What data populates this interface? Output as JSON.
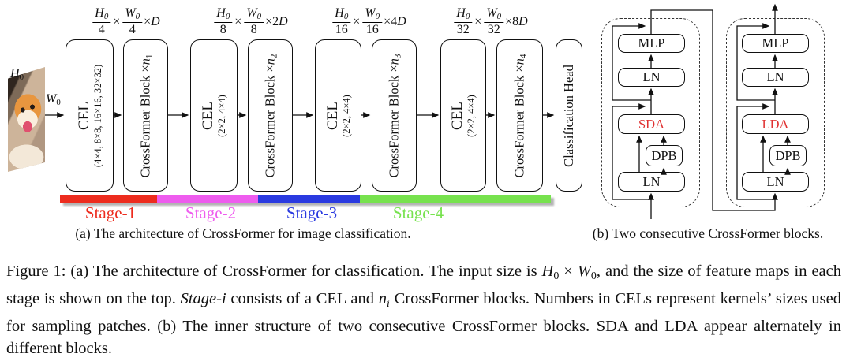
{
  "panel_a": {
    "caption": "(a) The architecture of CrossFormer for image classification.",
    "input_h": [
      {
        "t": "H",
        "i": 1
      },
      {
        "t": "0",
        "s": 1
      }
    ],
    "input_w": [
      {
        "t": "W",
        "i": 1
      },
      {
        "t": "0",
        "s": 1
      }
    ],
    "formulas": [
      {
        "num1": [
          {
            "t": "H",
            "i": 1
          },
          {
            "t": "0",
            "s": 1
          }
        ],
        "den1": "4",
        "op": "×",
        "num2": [
          {
            "t": "W",
            "i": 1
          },
          {
            "t": "0",
            "s": 1
          }
        ],
        "den2": "4",
        "tail": [
          {
            "t": "×"
          },
          {
            "t": "D",
            "i": 1
          }
        ]
      },
      {
        "num1": [
          {
            "t": "H",
            "i": 1
          },
          {
            "t": "0",
            "s": 1
          }
        ],
        "den1": "8",
        "op": "×",
        "num2": [
          {
            "t": "W",
            "i": 1
          },
          {
            "t": "0",
            "s": 1
          }
        ],
        "den2": "8",
        "tail": [
          {
            "t": "×"
          },
          {
            "t": "2"
          },
          {
            "t": "D",
            "i": 1
          }
        ]
      },
      {
        "num1": [
          {
            "t": "H",
            "i": 1
          },
          {
            "t": "0",
            "s": 1
          }
        ],
        "den1": "16",
        "op": "×",
        "num2": [
          {
            "t": "W",
            "i": 1
          },
          {
            "t": "0",
            "s": 1
          }
        ],
        "den2": "16",
        "tail": [
          {
            "t": "×"
          },
          {
            "t": "4"
          },
          {
            "t": "D",
            "i": 1
          }
        ]
      },
      {
        "num1": [
          {
            "t": "H",
            "i": 1
          },
          {
            "t": "0",
            "s": 1
          }
        ],
        "den1": "32",
        "op": "×",
        "num2": [
          {
            "t": "W",
            "i": 1
          },
          {
            "t": "0",
            "s": 1
          }
        ],
        "den2": "32",
        "tail": [
          {
            "t": "×"
          },
          {
            "t": "8"
          },
          {
            "t": "D",
            "i": 1
          }
        ]
      }
    ],
    "blocks": [
      {
        "line1": "CEL",
        "line2": "(4×4, 8×8, 16×16, 32×32)"
      },
      {
        "segs": [
          {
            "t": "CrossFormer Block ×"
          },
          {
            "t": "n",
            "i": 1
          },
          {
            "t": "1",
            "s": 1
          }
        ]
      },
      {
        "line1": "CEL",
        "line2": "(2×2, 4×4)"
      },
      {
        "segs": [
          {
            "t": "CrossFormer Block ×"
          },
          {
            "t": "n",
            "i": 1
          },
          {
            "t": "2",
            "s": 1
          }
        ]
      },
      {
        "line1": "CEL",
        "line2": "(2×2, 4×4)"
      },
      {
        "segs": [
          {
            "t": "CrossFormer Block ×"
          },
          {
            "t": "n",
            "i": 1
          },
          {
            "t": "3",
            "s": 1
          }
        ]
      },
      {
        "line1": "CEL",
        "line2": "(2×2, 4×4)"
      },
      {
        "segs": [
          {
            "t": "CrossFormer Block ×"
          },
          {
            "t": "n",
            "i": 1
          },
          {
            "t": "4",
            "s": 1
          }
        ]
      },
      {
        "label": "Classification Head"
      }
    ],
    "stages": [
      {
        "label": "Stage-1",
        "color": "#ed2c1e"
      },
      {
        "label": "Stage-2",
        "color": "#ee5cee"
      },
      {
        "label": "Stage-3",
        "color": "#2a3ae0"
      },
      {
        "label": "Stage-4",
        "color": "#77e24e"
      }
    ]
  },
  "panel_b": {
    "caption": "(b) Two consecutive CrossFormer blocks.",
    "accent_red": "#e03131",
    "left": {
      "mlp": "MLP",
      "ln1": "LN",
      "attn": "SDA",
      "dpb": "DPB",
      "ln2": "LN"
    },
    "right": {
      "mlp": "MLP",
      "ln1": "LN",
      "attn": "LDA",
      "dpb": "DPB",
      "ln2": "LN"
    }
  },
  "figure_caption": {
    "segments": [
      {
        "t": "Figure 1: (a) The architecture of CrossFormer for classification. The input size is "
      },
      {
        "t": "H",
        "i": 1
      },
      {
        "t": "0",
        "s": 1
      },
      {
        "t": " × "
      },
      {
        "t": "W",
        "i": 1
      },
      {
        "t": "0",
        "s": 1
      },
      {
        "t": ", and the size of feature maps in each stage is shown on the top. "
      },
      {
        "t": "Stage-i",
        "i": 1
      },
      {
        "t": " consists of a CEL and "
      },
      {
        "t": "n",
        "i": 1
      },
      {
        "t": "i",
        "i": 1,
        "s": 1
      },
      {
        "t": " CrossFormer blocks. Numbers in CELs represent kernels’ sizes used for sampling patches. (b) The inner structure of two consecutive CrossFormer blocks. SDA and LDA appear alternately in different blocks."
      }
    ]
  }
}
